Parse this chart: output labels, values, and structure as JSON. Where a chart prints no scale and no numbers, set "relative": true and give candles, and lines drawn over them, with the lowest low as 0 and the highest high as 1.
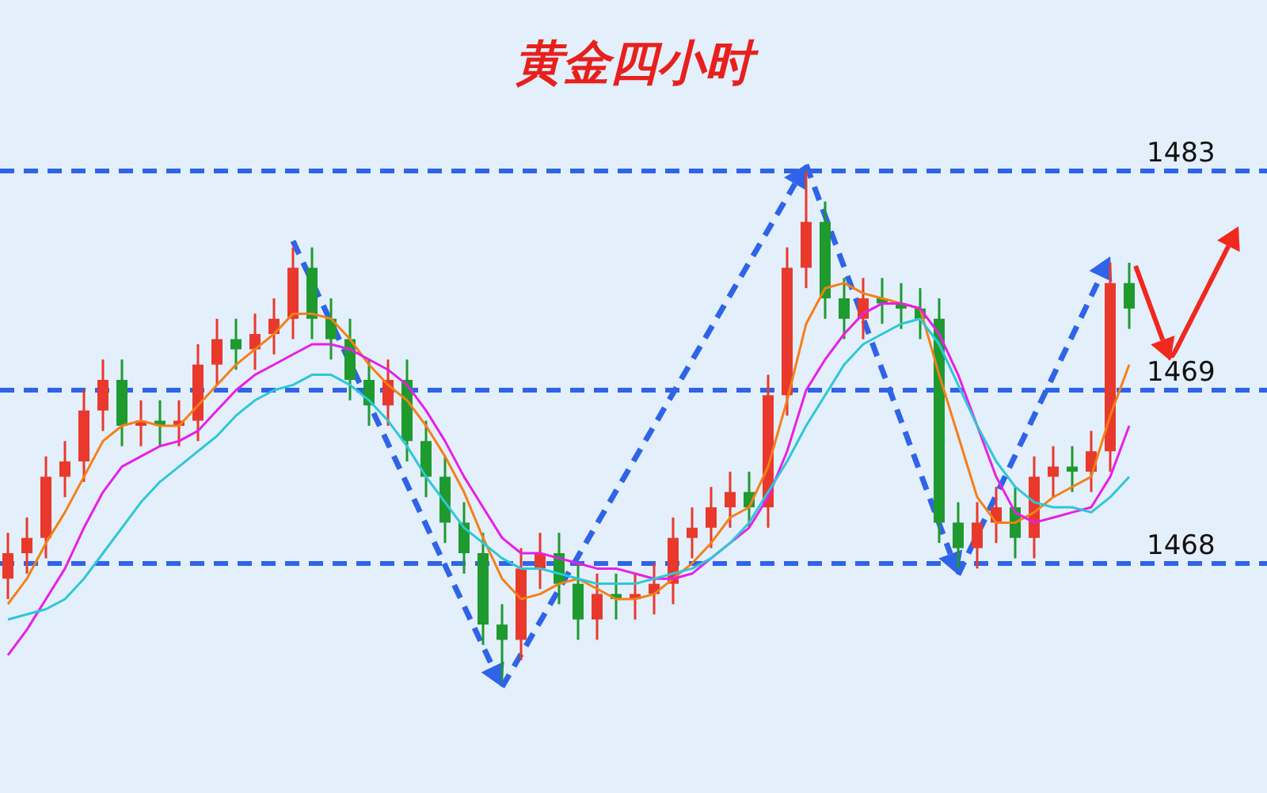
{
  "chart_data": {
    "type": "candlestick",
    "title": "黄金四小时",
    "relative": true,
    "categories": [
      null,
      null,
      null,
      null,
      null,
      null,
      null,
      null,
      null,
      null,
      null,
      null,
      null,
      null,
      null,
      null,
      null,
      null,
      null,
      null,
      null,
      null,
      null,
      null,
      null,
      null,
      null,
      null,
      null,
      null,
      null,
      null,
      null,
      null,
      null,
      null,
      null,
      null,
      null,
      null,
      null,
      null,
      null,
      null,
      null,
      null,
      null,
      null,
      null,
      null,
      null,
      null,
      null,
      null,
      null,
      null,
      null,
      null,
      null,
      null
    ],
    "ohlc": [
      [
        0.2,
        0.29,
        0.16,
        0.25
      ],
      [
        0.25,
        0.32,
        0.21,
        0.28
      ],
      [
        0.28,
        0.44,
        0.24,
        0.4
      ],
      [
        0.4,
        0.47,
        0.36,
        0.43
      ],
      [
        0.43,
        0.57,
        0.39,
        0.53
      ],
      [
        0.53,
        0.63,
        0.49,
        0.59
      ],
      [
        0.59,
        0.63,
        0.46,
        0.5
      ],
      [
        0.5,
        0.55,
        0.46,
        0.51
      ],
      [
        0.51,
        0.55,
        0.46,
        0.5
      ],
      [
        0.5,
        0.55,
        0.46,
        0.51
      ],
      [
        0.51,
        0.66,
        0.47,
        0.62
      ],
      [
        0.62,
        0.71,
        0.58,
        0.67
      ],
      [
        0.67,
        0.71,
        0.61,
        0.65
      ],
      [
        0.65,
        0.72,
        0.61,
        0.68
      ],
      [
        0.68,
        0.75,
        0.64,
        0.71
      ],
      [
        0.71,
        0.85,
        0.67,
        0.81
      ],
      [
        0.81,
        0.85,
        0.67,
        0.71
      ],
      [
        0.71,
        0.75,
        0.63,
        0.67
      ],
      [
        0.67,
        0.71,
        0.55,
        0.59
      ],
      [
        0.59,
        0.63,
        0.5,
        0.54
      ],
      [
        0.54,
        0.63,
        0.5,
        0.59
      ],
      [
        0.59,
        0.63,
        0.43,
        0.47
      ],
      [
        0.47,
        0.51,
        0.36,
        0.4
      ],
      [
        0.4,
        0.44,
        0.27,
        0.31
      ],
      [
        0.31,
        0.35,
        0.21,
        0.25
      ],
      [
        0.25,
        0.29,
        0.07,
        0.11
      ],
      [
        0.11,
        0.15,
        0.0,
        0.08
      ],
      [
        0.08,
        0.26,
        0.04,
        0.22
      ],
      [
        0.22,
        0.29,
        0.18,
        0.25
      ],
      [
        0.25,
        0.29,
        0.15,
        0.19
      ],
      [
        0.19,
        0.23,
        0.08,
        0.12
      ],
      [
        0.12,
        0.21,
        0.08,
        0.17
      ],
      [
        0.17,
        0.21,
        0.12,
        0.16
      ],
      [
        0.16,
        0.21,
        0.12,
        0.17
      ],
      [
        0.17,
        0.23,
        0.13,
        0.19
      ],
      [
        0.19,
        0.32,
        0.15,
        0.28
      ],
      [
        0.28,
        0.34,
        0.24,
        0.3
      ],
      [
        0.3,
        0.38,
        0.26,
        0.34
      ],
      [
        0.34,
        0.41,
        0.3,
        0.37
      ],
      [
        0.37,
        0.41,
        0.3,
        0.34
      ],
      [
        0.34,
        0.6,
        0.3,
        0.56
      ],
      [
        0.56,
        0.85,
        0.52,
        0.81
      ],
      [
        0.81,
        1.0,
        0.77,
        0.9
      ],
      [
        0.9,
        0.94,
        0.71,
        0.75
      ],
      [
        0.75,
        0.79,
        0.67,
        0.71
      ],
      [
        0.71,
        0.79,
        0.67,
        0.75
      ],
      [
        0.75,
        0.79,
        0.7,
        0.74
      ],
      [
        0.74,
        0.78,
        0.69,
        0.73
      ],
      [
        0.73,
        0.77,
        0.67,
        0.71
      ],
      [
        0.71,
        0.75,
        0.27,
        0.31
      ],
      [
        0.31,
        0.35,
        0.22,
        0.26
      ],
      [
        0.26,
        0.35,
        0.22,
        0.31
      ],
      [
        0.31,
        0.38,
        0.27,
        0.34
      ],
      [
        0.34,
        0.38,
        0.24,
        0.28
      ],
      [
        0.28,
        0.44,
        0.24,
        0.4
      ],
      [
        0.4,
        0.46,
        0.36,
        0.42
      ],
      [
        0.42,
        0.46,
        0.37,
        0.41
      ],
      [
        0.41,
        0.49,
        0.37,
        0.45
      ],
      [
        0.45,
        0.82,
        0.41,
        0.78
      ],
      [
        0.78,
        0.82,
        0.69,
        0.73
      ]
    ],
    "colors": [
      "#e8392c",
      "#e8392c",
      "#e8392c",
      "#e8392c",
      "#e8392c",
      "#e8392c",
      "#1e9a2e",
      "#e8392c",
      "#1e9a2e",
      "#e8392c",
      "#e8392c",
      "#e8392c",
      "#1e9a2e",
      "#e8392c",
      "#e8392c",
      "#e8392c",
      "#1e9a2e",
      "#1e9a2e",
      "#1e9a2e",
      "#1e9a2e",
      "#e8392c",
      "#1e9a2e",
      "#1e9a2e",
      "#1e9a2e",
      "#1e9a2e",
      "#1e9a2e",
      "#1e9a2e",
      "#e8392c",
      "#e8392c",
      "#1e9a2e",
      "#1e9a2e",
      "#e8392c",
      "#1e9a2e",
      "#e8392c",
      "#e8392c",
      "#e8392c",
      "#e8392c",
      "#e8392c",
      "#e8392c",
      "#1e9a2e",
      "#e8392c",
      "#e8392c",
      "#e8392c",
      "#1e9a2e",
      "#1e9a2e",
      "#e8392c",
      "#1e9a2e",
      "#1e9a2e",
      "#1e9a2e",
      "#1e9a2e",
      "#1e9a2e",
      "#e8392c",
      "#e8392c",
      "#1e9a2e",
      "#e8392c",
      "#e8392c",
      "#1e9a2e",
      "#e8392c",
      "#e8392c",
      "#1e9a2e"
    ],
    "series": [
      {
        "type": "line",
        "color": "#f57f17",
        "values": [
          0.15,
          0.2,
          0.27,
          0.33,
          0.4,
          0.47,
          0.5,
          0.51,
          0.5,
          0.5,
          0.54,
          0.58,
          0.62,
          0.65,
          0.68,
          0.72,
          0.72,
          0.71,
          0.67,
          0.62,
          0.58,
          0.55,
          0.5,
          0.44,
          0.37,
          0.28,
          0.2,
          0.16,
          0.17,
          0.19,
          0.2,
          0.18,
          0.16,
          0.16,
          0.17,
          0.2,
          0.23,
          0.27,
          0.32,
          0.34,
          0.42,
          0.55,
          0.7,
          0.77,
          0.78,
          0.76,
          0.75,
          0.74,
          0.73,
          0.6,
          0.48,
          0.36,
          0.31,
          0.31,
          0.33,
          0.36,
          0.38,
          0.4,
          0.52,
          0.62
        ]
      },
      {
        "type": "line",
        "color": "#e81ee8",
        "values": [
          0.05,
          0.1,
          0.16,
          0.22,
          0.3,
          0.37,
          0.42,
          0.44,
          0.46,
          0.47,
          0.49,
          0.53,
          0.57,
          0.6,
          0.62,
          0.64,
          0.66,
          0.66,
          0.65,
          0.63,
          0.61,
          0.58,
          0.53,
          0.47,
          0.4,
          0.34,
          0.28,
          0.25,
          0.25,
          0.24,
          0.23,
          0.22,
          0.22,
          0.21,
          0.2,
          0.2,
          0.21,
          0.24,
          0.27,
          0.3,
          0.36,
          0.45,
          0.57,
          0.63,
          0.68,
          0.72,
          0.74,
          0.74,
          0.73,
          0.68,
          0.6,
          0.5,
          0.4,
          0.33,
          0.31,
          0.32,
          0.33,
          0.34,
          0.4,
          0.5
        ]
      },
      {
        "type": "line",
        "color": "#2ec7d6",
        "values": [
          0.12,
          0.13,
          0.14,
          0.16,
          0.2,
          0.25,
          0.3,
          0.35,
          0.39,
          0.42,
          0.45,
          0.48,
          0.52,
          0.55,
          0.57,
          0.58,
          0.6,
          0.6,
          0.58,
          0.55,
          0.51,
          0.46,
          0.4,
          0.35,
          0.3,
          0.27,
          0.24,
          0.22,
          0.22,
          0.21,
          0.2,
          0.19,
          0.19,
          0.19,
          0.2,
          0.21,
          0.22,
          0.24,
          0.27,
          0.31,
          0.37,
          0.43,
          0.5,
          0.56,
          0.62,
          0.66,
          0.68,
          0.7,
          0.71,
          0.66,
          0.58,
          0.5,
          0.43,
          0.38,
          0.35,
          0.34,
          0.34,
          0.33,
          0.36,
          0.4
        ]
      }
    ],
    "ref_lines": [
      {
        "axis": "y",
        "value": 1.0,
        "color": "#2f63e8",
        "line_style": "dashed"
      },
      {
        "axis": "y",
        "value": 0.57,
        "color": "#2f63e8",
        "line_style": "dashed"
      },
      {
        "axis": "y",
        "value": 0.23,
        "color": "#2f63e8",
        "line_style": "dashed"
      }
    ],
    "annotations": [
      {
        "text": "1483",
        "y": 1.0
      },
      {
        "text": "1469",
        "y": 0.57
      },
      {
        "text": "1468",
        "y": 0.23
      }
    ]
  }
}
